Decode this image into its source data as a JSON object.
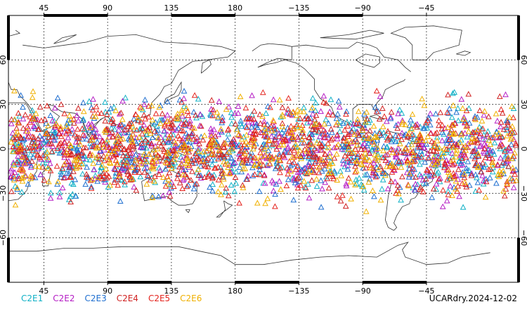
{
  "map": {
    "projection": "equirectangular",
    "lon_range": [
      20,
      380
    ],
    "lat_range": [
      -90,
      90
    ],
    "marker": "triangle",
    "top_ticks": [
      "45",
      "90",
      "135",
      "180",
      "−135",
      "−90",
      "−45"
    ],
    "bottom_ticks": [
      "45",
      "90",
      "135",
      "180",
      "−135",
      "−90",
      "−45"
    ],
    "lat_ticks": [
      "60",
      "30",
      "0",
      "−30",
      "−60"
    ]
  },
  "legend": [
    {
      "label": "C2E1",
      "color": "#11b1c6"
    },
    {
      "label": "C2E2",
      "color": "#b51cc4"
    },
    {
      "label": "C2E3",
      "color": "#1f6fd0"
    },
    {
      "label": "C2E4",
      "color": "#d02222"
    },
    {
      "label": "C2E5",
      "color": "#e4241e"
    },
    {
      "label": "C2E6",
      "color": "#f0b000"
    }
  ],
  "footer": {
    "label": "UCARdry.2024-12-02"
  },
  "points": {
    "lat_band": [
      -45,
      45
    ],
    "approx_count_per_series": 420
  }
}
